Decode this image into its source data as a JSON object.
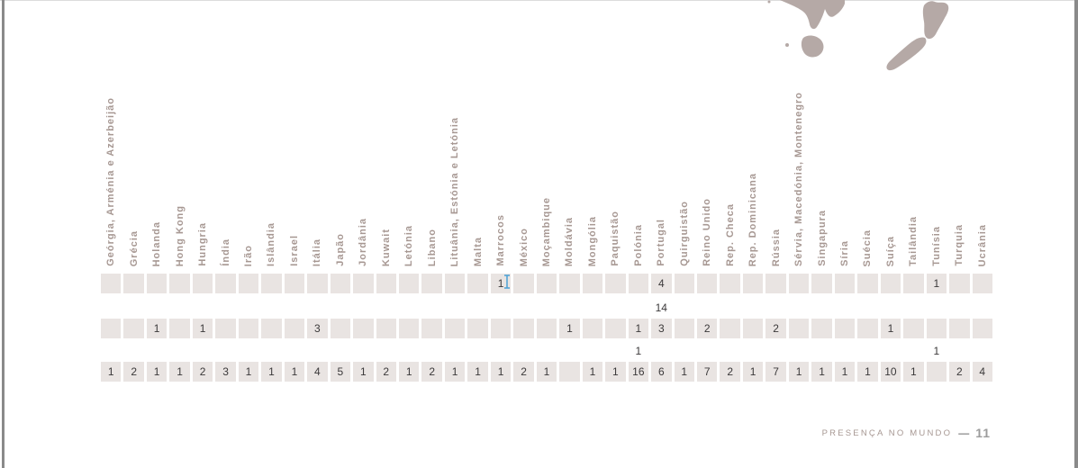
{
  "footer": {
    "label": "PRESENÇA NO MUNDO",
    "separator": "—",
    "page_number": "11"
  },
  "icons": {
    "map_fragment": "australia-tasmania-new-zealand-map-fragment",
    "cursor": "text-ibeam-cursor"
  },
  "colors": {
    "cell_background": "#e9e4e2",
    "header_text": "#a79893",
    "value_text": "#3b393a",
    "map_fill": "#b5a9a6",
    "edge_bar": "#8a8a8a",
    "footer_label": "#a79893",
    "footer_dash": "#4b4b4b",
    "footer_page_number": "#9c9c9c"
  },
  "chart_data": {
    "type": "table",
    "columns": [
      "Geórgia, Arménia e Azerbeijão",
      "Grécia",
      "Holanda",
      "Hong Kong",
      "Hungria",
      "Índia",
      "Irão",
      "Islândia",
      "Israel",
      "Itália",
      "Japão",
      "Jordânia",
      "Kuwait",
      "Letónia",
      "Libano",
      "Lituânia, Estónia e Letónia",
      "Malta",
      "Marrocos",
      "México",
      "Moçambique",
      "Moldávia",
      "Mongólia",
      "Paquistão",
      "Polónia",
      "Portugal",
      "Quirguistão",
      "Reino Unido",
      "Rep. Checa",
      "Rep. Dominicana",
      "Rússia",
      "Sérvia, Macedónia, Montenegro",
      "Singapura",
      "Síria",
      "Suécia",
      "Suíça",
      "Tailândia",
      "Tunísia",
      "Turquia",
      "Ucrânia"
    ],
    "rows": [
      {
        "kind": "cells",
        "values": [
          "",
          "",
          "",
          "",
          "",
          "",
          "",
          "",
          "",
          "",
          "",
          "",
          "",
          "",
          "",
          "",
          "",
          "1",
          "",
          "",
          "",
          "",
          "",
          "",
          "4",
          "",
          "",
          "",
          "",
          "",
          "",
          "",
          "",
          "",
          "",
          "",
          "1",
          "",
          ""
        ]
      },
      {
        "kind": "labels",
        "values": [
          "",
          "",
          "",
          "",
          "",
          "",
          "",
          "",
          "",
          "",
          "",
          "",
          "",
          "",
          "",
          "",
          "",
          "",
          "",
          "",
          "",
          "",
          "",
          "",
          "14",
          "",
          "",
          "",
          "",
          "",
          "",
          "",
          "",
          "",
          "",
          "",
          "",
          "",
          ""
        ]
      },
      {
        "kind": "cells",
        "values": [
          "",
          "",
          "1",
          "",
          "1",
          "",
          "",
          "",
          "",
          "3",
          "",
          "",
          "",
          "",
          "",
          "",
          "",
          "",
          "",
          "",
          "1",
          "",
          "",
          "1",
          "3",
          "",
          "2",
          "",
          "",
          "2",
          "",
          "",
          "",
          "",
          "1",
          "",
          "",
          "",
          ""
        ]
      },
      {
        "kind": "labels",
        "values": [
          "",
          "",
          "",
          "",
          "",
          "",
          "",
          "",
          "",
          "",
          "",
          "",
          "",
          "",
          "",
          "",
          "",
          "",
          "",
          "",
          "",
          "",
          "",
          "1",
          "",
          "",
          "",
          "",
          "",
          "",
          "",
          "",
          "",
          "",
          "",
          "",
          "1",
          "",
          ""
        ]
      },
      {
        "kind": "cells",
        "values": [
          "1",
          "2",
          "1",
          "1",
          "2",
          "3",
          "1",
          "1",
          "1",
          "4",
          "5",
          "1",
          "2",
          "1",
          "2",
          "1",
          "1",
          "1",
          "2",
          "1",
          "",
          "1",
          "1",
          "16",
          "6",
          "1",
          "7",
          "2",
          "1",
          "7",
          "1",
          "1",
          "1",
          "1",
          "10",
          "1",
          "",
          "2",
          "4"
        ]
      }
    ]
  }
}
